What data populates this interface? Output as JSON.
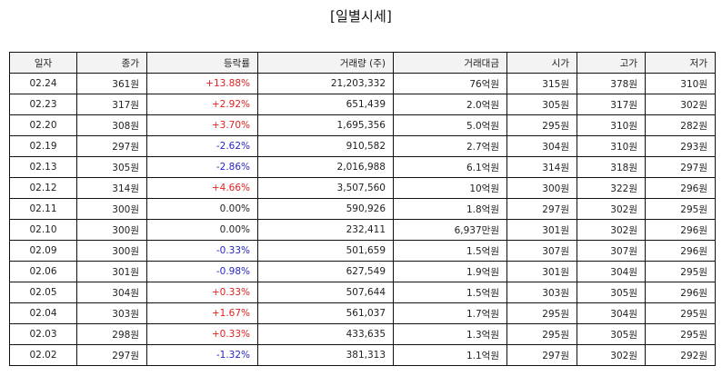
{
  "title": "[일별시세]",
  "colors": {
    "up": "#e02020",
    "down": "#2626c8",
    "flat": "#222222"
  },
  "columns": [
    "일자",
    "종가",
    "등락률",
    "거래량 (주)",
    "거래대금",
    "시가",
    "고가",
    "저가"
  ],
  "rows": [
    {
      "date": "02.24",
      "close": "361원",
      "change": "+13.88%",
      "dir": "up",
      "volume": "21,203,332",
      "amount": "76억원",
      "open": "315원",
      "high": "378원",
      "low": "310원"
    },
    {
      "date": "02.23",
      "close": "317원",
      "change": "+2.92%",
      "dir": "up",
      "volume": "651,439",
      "amount": "2.0억원",
      "open": "305원",
      "high": "317원",
      "low": "302원"
    },
    {
      "date": "02.20",
      "close": "308원",
      "change": "+3.70%",
      "dir": "up",
      "volume": "1,695,356",
      "amount": "5.0억원",
      "open": "295원",
      "high": "310원",
      "low": "282원"
    },
    {
      "date": "02.19",
      "close": "297원",
      "change": "-2.62%",
      "dir": "down",
      "volume": "910,582",
      "amount": "2.7억원",
      "open": "304원",
      "high": "310원",
      "low": "293원"
    },
    {
      "date": "02.13",
      "close": "305원",
      "change": "-2.86%",
      "dir": "down",
      "volume": "2,016,988",
      "amount": "6.1억원",
      "open": "314원",
      "high": "318원",
      "low": "297원"
    },
    {
      "date": "02.12",
      "close": "314원",
      "change": "+4.66%",
      "dir": "up",
      "volume": "3,507,560",
      "amount": "10억원",
      "open": "300원",
      "high": "322원",
      "low": "296원"
    },
    {
      "date": "02.11",
      "close": "300원",
      "change": "0.00%",
      "dir": "flat",
      "volume": "590,926",
      "amount": "1.8억원",
      "open": "297원",
      "high": "302원",
      "low": "295원"
    },
    {
      "date": "02.10",
      "close": "300원",
      "change": "0.00%",
      "dir": "flat",
      "volume": "232,411",
      "amount": "6,937만원",
      "open": "301원",
      "high": "302원",
      "low": "296원"
    },
    {
      "date": "02.09",
      "close": "300원",
      "change": "-0.33%",
      "dir": "down",
      "volume": "501,659",
      "amount": "1.5억원",
      "open": "307원",
      "high": "307원",
      "low": "296원"
    },
    {
      "date": "02.06",
      "close": "301원",
      "change": "-0.98%",
      "dir": "down",
      "volume": "627,549",
      "amount": "1.9억원",
      "open": "301원",
      "high": "304원",
      "low": "295원"
    },
    {
      "date": "02.05",
      "close": "304원",
      "change": "+0.33%",
      "dir": "up",
      "volume": "507,644",
      "amount": "1.5억원",
      "open": "303원",
      "high": "305원",
      "low": "296원"
    },
    {
      "date": "02.04",
      "close": "303원",
      "change": "+1.67%",
      "dir": "up",
      "volume": "561,037",
      "amount": "1.7억원",
      "open": "295원",
      "high": "304원",
      "low": "295원"
    },
    {
      "date": "02.03",
      "close": "298원",
      "change": "+0.33%",
      "dir": "up",
      "volume": "433,635",
      "amount": "1.3억원",
      "open": "295원",
      "high": "305원",
      "low": "295원"
    },
    {
      "date": "02.02",
      "close": "297원",
      "change": "-1.32%",
      "dir": "down",
      "volume": "381,313",
      "amount": "1.1억원",
      "open": "297원",
      "high": "302원",
      "low": "292원"
    }
  ]
}
